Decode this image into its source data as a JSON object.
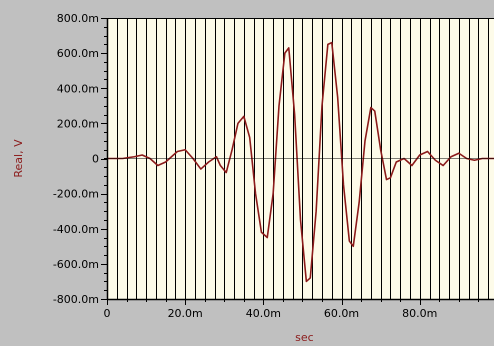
{
  "chart_data": {
    "type": "line",
    "title": "",
    "xlabel": "sec",
    "ylabel": "Real, V",
    "xlim": [
      0,
      0.099
    ],
    "ylim": [
      -0.8,
      0.8
    ],
    "grid": "vertical-major",
    "x_ticks": [
      {
        "value": 0,
        "label": "0"
      },
      {
        "value": 0.02,
        "label": "20.0m"
      },
      {
        "value": 0.04,
        "label": "40.0m"
      },
      {
        "value": 0.06,
        "label": "60.0m"
      },
      {
        "value": 0.08,
        "label": "80.0m"
      }
    ],
    "y_ticks": [
      {
        "value": 0.8,
        "label": "800.0m"
      },
      {
        "value": 0.6,
        "label": "600.0m"
      },
      {
        "value": 0.4,
        "label": "400.0m"
      },
      {
        "value": 0.2,
        "label": "200.0m"
      },
      {
        "value": 0,
        "label": "0"
      },
      {
        "value": -0.2,
        "label": "-200.0m"
      },
      {
        "value": -0.4,
        "label": "-400.0m"
      },
      {
        "value": -0.6,
        "label": "-600.0m"
      },
      {
        "value": -0.8,
        "label": "-800.0m"
      }
    ],
    "series": [
      {
        "line_color": "#8b1a1a",
        "points": [
          [
            0.0,
            0.0
          ],
          [
            0.004,
            0.0
          ],
          [
            0.007,
            0.01
          ],
          [
            0.009,
            0.02
          ],
          [
            0.011,
            0.0
          ],
          [
            0.013,
            -0.04
          ],
          [
            0.015,
            -0.02
          ],
          [
            0.018,
            0.04
          ],
          [
            0.02,
            0.05
          ],
          [
            0.022,
            0.0
          ],
          [
            0.024,
            -0.06
          ],
          [
            0.026,
            -0.02
          ],
          [
            0.028,
            0.01
          ],
          [
            0.029,
            -0.04
          ],
          [
            0.0305,
            -0.08
          ],
          [
            0.032,
            0.05
          ],
          [
            0.0335,
            0.2
          ],
          [
            0.035,
            0.24
          ],
          [
            0.0365,
            0.12
          ],
          [
            0.038,
            -0.2
          ],
          [
            0.0395,
            -0.42
          ],
          [
            0.041,
            -0.45
          ],
          [
            0.0425,
            -0.2
          ],
          [
            0.044,
            0.3
          ],
          [
            0.0455,
            0.6
          ],
          [
            0.0465,
            0.63
          ],
          [
            0.048,
            0.25
          ],
          [
            0.0495,
            -0.35
          ],
          [
            0.051,
            -0.7
          ],
          [
            0.052,
            -0.68
          ],
          [
            0.0535,
            -0.3
          ],
          [
            0.055,
            0.3
          ],
          [
            0.0565,
            0.65
          ],
          [
            0.0575,
            0.66
          ],
          [
            0.059,
            0.35
          ],
          [
            0.0605,
            -0.15
          ],
          [
            0.062,
            -0.47
          ],
          [
            0.063,
            -0.5
          ],
          [
            0.0645,
            -0.25
          ],
          [
            0.066,
            0.1
          ],
          [
            0.0675,
            0.29
          ],
          [
            0.0685,
            0.27
          ],
          [
            0.07,
            0.05
          ],
          [
            0.0715,
            -0.12
          ],
          [
            0.0725,
            -0.11
          ],
          [
            0.074,
            -0.02
          ],
          [
            0.076,
            0.0
          ],
          [
            0.078,
            -0.04
          ],
          [
            0.08,
            0.02
          ],
          [
            0.082,
            0.04
          ],
          [
            0.084,
            -0.01
          ],
          [
            0.086,
            -0.04
          ],
          [
            0.088,
            0.01
          ],
          [
            0.09,
            0.03
          ],
          [
            0.092,
            0.0
          ],
          [
            0.094,
            -0.01
          ],
          [
            0.096,
            0.0
          ],
          [
            0.099,
            0.0
          ]
        ]
      }
    ]
  },
  "colors": {
    "background": "#c0c0c0",
    "plot_background": "#fdfbe9",
    "grid": "#000000",
    "axis_label": "#8b1a1a",
    "line": "#8b1a1a"
  }
}
